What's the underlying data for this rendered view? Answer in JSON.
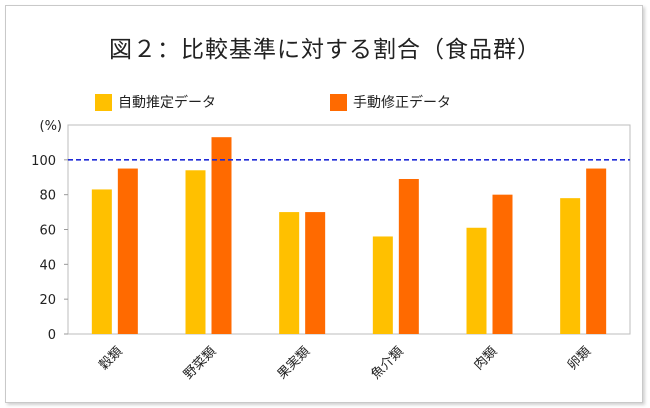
{
  "chart_data": {
    "type": "bar",
    "title": "図２：比較基準に対する割合（食品群）",
    "ylabel": "(%)",
    "xlabel": "",
    "ylim": [
      0,
      120
    ],
    "yticks": [
      0,
      20,
      40,
      60,
      80,
      100
    ],
    "reference_line": 100,
    "categories": [
      "穀類",
      "野菜類",
      "果実類",
      "魚介類",
      "肉類",
      "卵類"
    ],
    "series": [
      {
        "name": "自動推定データ",
        "color": "#FFC000",
        "values": [
          83,
          94,
          70,
          56,
          61,
          78
        ]
      },
      {
        "name": "手動修正データ",
        "color": "#FF6A00",
        "values": [
          95,
          113,
          70,
          89,
          80,
          95
        ]
      }
    ],
    "reference_line_color": "#1f2ad6",
    "legend_position": "top"
  }
}
